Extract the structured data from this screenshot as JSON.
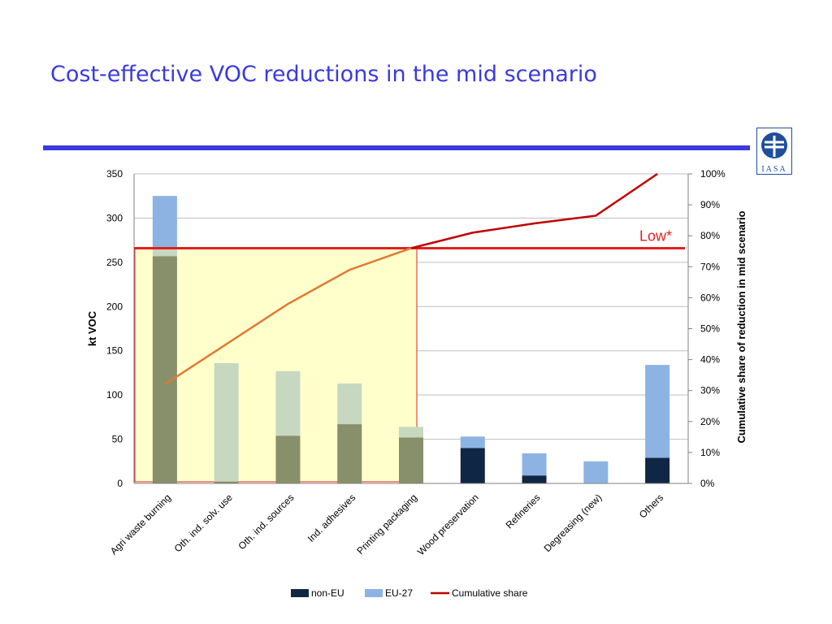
{
  "slide": {
    "title": "Cost-effective VOC reductions in the mid scenario",
    "accent_color": "#3a3ae0",
    "logo_text": "IASA"
  },
  "chart_data": {
    "type": "bar",
    "stacked": true,
    "categories": [
      "Agri waste burning",
      "Oth. ind. solv. use",
      "Oth. ind. sources",
      "Ind. adhesives",
      "Printing packaging",
      "Wood preservation",
      "Refineries",
      "Degreasing (new)",
      "Others"
    ],
    "series": [
      {
        "name": "non-EU",
        "color": "#0f2744",
        "values": [
          257,
          2,
          54,
          67,
          52,
          40,
          9,
          0,
          29
        ]
      },
      {
        "name": "EU-27",
        "color": "#8db3e2",
        "values": [
          68,
          134,
          73,
          46,
          12,
          13,
          25,
          25,
          105
        ]
      }
    ],
    "cumulative": {
      "name": "Cumulative share",
      "color": "#c00000",
      "values": [
        32,
        45,
        58,
        69,
        76,
        81,
        84,
        86.5,
        100
      ]
    },
    "ylabel": "kt VOC",
    "y2label": "Cumulative share of reduction in mid scenario",
    "ylim": [
      0,
      350
    ],
    "yticks": [
      0,
      50,
      100,
      150,
      200,
      250,
      300,
      350
    ],
    "y2lim": [
      0,
      100
    ],
    "y2ticks": [
      "0%",
      "10%",
      "20%",
      "30%",
      "40%",
      "50%",
      "60%",
      "70%",
      "80%",
      "90%",
      "100%"
    ],
    "grid": true,
    "legend_position": "bottom",
    "threshold": {
      "label": "Low*",
      "share": 76,
      "color": "#e02020"
    },
    "highlight": {
      "from_category": "Agri waste burning",
      "to_category": "Printing packaging",
      "fill": "#ffffcc",
      "border": "#e02020",
      "line_color": "#e07a30"
    }
  }
}
